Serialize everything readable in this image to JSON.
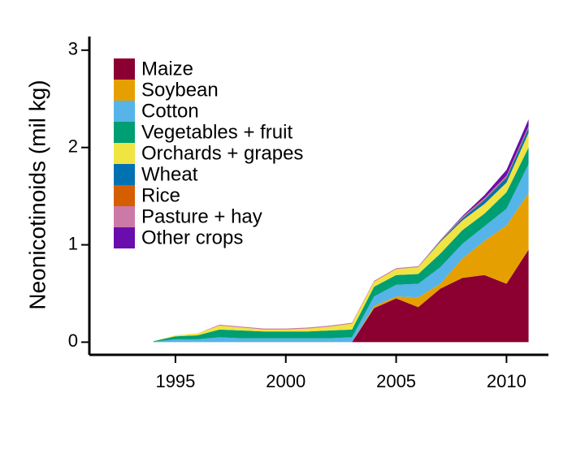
{
  "chart_data": {
    "type": "stacked_area",
    "y_label": "Neonicotinoids (mil kg)",
    "x": [
      1994,
      1995,
      1996,
      1997,
      1998,
      1999,
      2000,
      2001,
      2002,
      2003,
      2004,
      2005,
      2006,
      2007,
      2008,
      2009,
      2010,
      2011
    ],
    "xlim": [
      1991.1,
      2011.9
    ],
    "xticks": [
      1995,
      2000,
      2005,
      2010
    ],
    "ylim": [
      -0.13,
      3.14
    ],
    "yticks": [
      0,
      1,
      2,
      3
    ],
    "series": [
      {
        "name": "Maize",
        "color": "#8b0030",
        "values": [
          0,
          0,
          0,
          0,
          0,
          0,
          0,
          0,
          0,
          0,
          0.35,
          0.45,
          0.36,
          0.55,
          0.66,
          0.69,
          0.6,
          0.95
        ]
      },
      {
        "name": "Soybean",
        "color": "#e69f00",
        "values": [
          0,
          0,
          0,
          0,
          0,
          0,
          0,
          0,
          0,
          0,
          0.02,
          0.02,
          0.1,
          0.05,
          0.2,
          0.35,
          0.6,
          0.58
        ]
      },
      {
        "name": "Cotton",
        "color": "#56b4e9",
        "values": [
          0.005,
          0.03,
          0.03,
          0.05,
          0.04,
          0.04,
          0.04,
          0.04,
          0.04,
          0.05,
          0.1,
          0.12,
          0.14,
          0.17,
          0.15,
          0.15,
          0.17,
          0.3
        ]
      },
      {
        "name": "Vegetables + fruit",
        "color": "#009e73",
        "values": [
          0.005,
          0.03,
          0.04,
          0.08,
          0.08,
          0.07,
          0.07,
          0.07,
          0.08,
          0.08,
          0.1,
          0.1,
          0.1,
          0.14,
          0.14,
          0.13,
          0.17,
          0.17
        ]
      },
      {
        "name": "Orchards + grapes",
        "color": "#f0e442",
        "values": [
          0,
          0.01,
          0.02,
          0.04,
          0.03,
          0.02,
          0.02,
          0.03,
          0.04,
          0.06,
          0.05,
          0.06,
          0.07,
          0.12,
          0.1,
          0.1,
          0.1,
          0.15
        ]
      },
      {
        "name": "Wheat",
        "color": "#0072b2",
        "values": [
          0,
          0,
          0,
          0,
          0,
          0,
          0,
          0,
          0,
          0,
          0,
          0,
          0,
          0.01,
          0.02,
          0.04,
          0.05,
          0.05
        ]
      },
      {
        "name": "Rice",
        "color": "#d55e00",
        "values": [
          0,
          0,
          0,
          0,
          0,
          0,
          0,
          0,
          0,
          0,
          0,
          0,
          0,
          0,
          0.005,
          0.01,
          0.01,
          0.01
        ]
      },
      {
        "name": "Pasture + hay",
        "color": "#cc79a7",
        "values": [
          0,
          0,
          0,
          0.01,
          0.01,
          0.01,
          0.01,
          0.01,
          0.01,
          0.01,
          0.01,
          0.01,
          0.01,
          0.01,
          0.01,
          0.01,
          0.01,
          0.01
        ]
      },
      {
        "name": "Other crops",
        "color": "#6a0dad",
        "values": [
          0,
          0,
          0,
          0,
          0,
          0,
          0,
          0,
          0,
          0,
          0,
          0,
          0,
          0,
          0.01,
          0.03,
          0.06,
          0.07
        ]
      }
    ]
  }
}
